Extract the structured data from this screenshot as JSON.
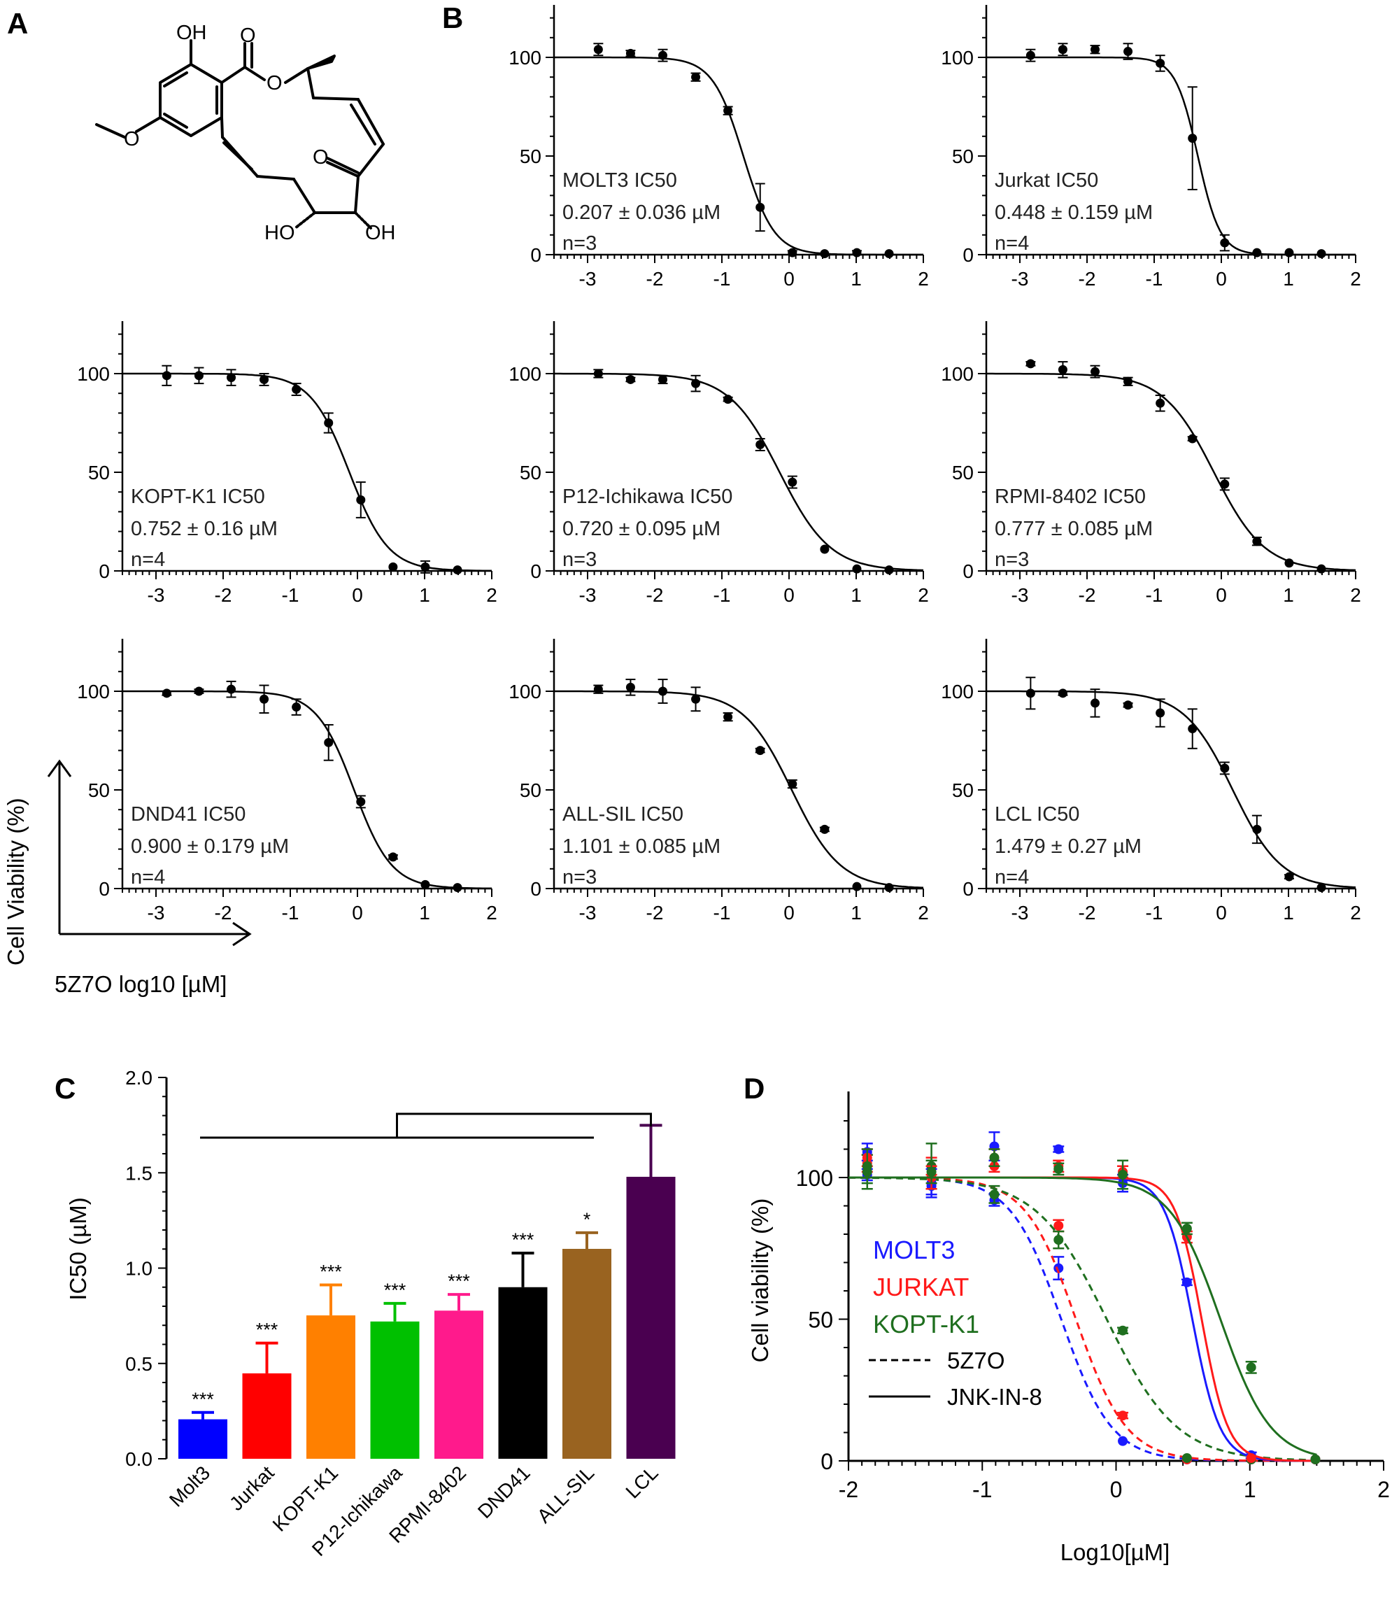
{
  "panel_labels": {
    "a": "A",
    "b": "B",
    "c": "C",
    "d": "D"
  },
  "colors": {
    "MOLT3": "#1a1aff",
    "JURKAT": "#ff1a1a",
    "KOPT-K1": "#1f6f1f",
    "ink": "#000000"
  },
  "structure": {
    "name": "5Z7O",
    "labels": {
      "oh_top": "OH",
      "o_carbonyl": "O",
      "o_ester": "O",
      "o_methoxy": "O",
      "o_ketone": "O",
      "ho": "HO",
      "oh_bottom": "OH"
    }
  },
  "panel_b_axes": {
    "xlabel": "5Z7O log10 [µM]",
    "ylabel": "Cell Viability (%)"
  },
  "chart_data": [
    {
      "type": "line",
      "panel": "B",
      "layout": "3x3 grid of dose-response curves (first cell is the structure of panel A)",
      "x_ticks": [
        -3,
        -2,
        -1,
        0,
        1,
        2
      ],
      "y_ticks": [
        0,
        50,
        100
      ],
      "xlim": [
        -3.5,
        2
      ],
      "ylim": [
        0,
        125
      ],
      "xlabel": "5Z7O log10 [µM]",
      "ylabel": "Cell Viability (%)",
      "x": [
        -2.84,
        -2.36,
        -1.88,
        -1.39,
        -0.91,
        -0.43,
        0.05,
        0.53,
        1.01,
        1.49
      ],
      "series": [
        {
          "name": "MOLT3",
          "ic50_label": "MOLT3 IC50",
          "value_label": "0.207 ± 0.036 µM",
          "n_label": "n=3",
          "ic50_log": -0.68,
          "hill": 1.9,
          "y": [
            104,
            102,
            101,
            90,
            73,
            24,
            1,
            0.5,
            1,
            0.5
          ],
          "err": [
            3,
            1.5,
            3,
            2,
            2,
            12,
            1,
            0.5,
            1,
            0.5
          ]
        },
        {
          "name": "Jurkat",
          "ic50_label": "Jurkat IC50",
          "value_label": "0.448 ± 0.159 µM",
          "n_label": "n=4",
          "ic50_log": -0.35,
          "hill": 2.6,
          "y": [
            101,
            104,
            104,
            103,
            97,
            59,
            6,
            1,
            1,
            0.5
          ],
          "err": [
            3,
            3,
            2,
            4,
            4,
            26,
            4,
            0.5,
            0.5,
            0.5
          ]
        },
        {
          "name": "KOPT-K1",
          "ic50_label": "KOPT-K1 IC50",
          "value_label": "0.752 ± 0.16 µM",
          "n_label": "n=4",
          "ic50_log": -0.12,
          "hill": 1.5,
          "y": [
            99,
            99,
            98,
            97,
            92,
            75,
            36,
            2,
            2,
            0.5
          ],
          "err": [
            5,
            4,
            4,
            3,
            3,
            5,
            9,
            0.5,
            3,
            0.5
          ]
        },
        {
          "name": "P12-Ichikawa",
          "ic50_label": "P12-Ichikawa IC50",
          "value_label": "0.720 ± 0.095 µM",
          "n_label": "n=3",
          "ic50_log": -0.14,
          "hill": 1.15,
          "y": [
            100,
            97,
            97,
            95,
            87,
            64,
            45,
            11,
            1,
            0.5
          ],
          "err": [
            2,
            1,
            2,
            4,
            1,
            3,
            3,
            0.5,
            0.5,
            0.5
          ]
        },
        {
          "name": "RPMI-8402",
          "ic50_label": "RPMI-8402 IC50",
          "value_label": "0.777 ± 0.085 µM",
          "n_label": "n=3",
          "ic50_log": -0.11,
          "hill": 1.15,
          "y": [
            105,
            102,
            101,
            96,
            85,
            67,
            44,
            15,
            4,
            1
          ],
          "err": [
            1,
            4,
            3,
            2,
            4,
            1,
            3,
            2,
            0.5,
            0.5
          ]
        },
        {
          "name": "DND41",
          "ic50_label": "DND41 IC50",
          "value_label": "0.900 ± 0.179 µM",
          "n_label": "n=4",
          "ic50_log": -0.05,
          "hill": 1.55,
          "y": [
            99,
            100,
            101,
            96,
            92,
            74,
            44,
            16,
            2,
            0.5
          ],
          "err": [
            1,
            1,
            4,
            7,
            4,
            9,
            3,
            1,
            0.5,
            0.5
          ]
        },
        {
          "name": "ALL-SIL",
          "ic50_label": "ALL-SIL IC50",
          "value_label": "1.101 ± 0.085 µM",
          "n_label": "n=3",
          "ic50_log": 0.04,
          "hill": 1.2,
          "y": [
            101,
            102,
            100,
            96,
            87,
            70,
            53,
            30,
            1,
            0.5
          ],
          "err": [
            2,
            4,
            6,
            6,
            2,
            1,
            2,
            1,
            0.5,
            0.5
          ]
        },
        {
          "name": "LCL",
          "ic50_label": "LCL IC50",
          "value_label": "1.479 ± 0.27 µM",
          "n_label": "n=4",
          "ic50_log": 0.17,
          "hill": 1.2,
          "y": [
            99,
            99,
            94,
            93,
            89,
            81,
            61,
            30,
            6,
            0.5
          ],
          "err": [
            8,
            1,
            7,
            1,
            7,
            10,
            3,
            7,
            1,
            0.5
          ]
        }
      ]
    },
    {
      "type": "bar",
      "panel": "C",
      "ylabel": "IC50 (µM)",
      "xlabel": "",
      "ylim": [
        0,
        2.0
      ],
      "y_ticks": [
        "0.0",
        "0.5",
        "1.0",
        "1.5",
        "2.0"
      ],
      "categories": [
        "Molt3",
        "Jurkat",
        "KOPT-K1",
        "P12-Ichikawa",
        "RPMI-8402",
        "DND41",
        "ALL-SIL",
        "LCL"
      ],
      "values": [
        0.207,
        0.448,
        0.752,
        0.72,
        0.777,
        0.9,
        1.101,
        1.479
      ],
      "errors": [
        0.036,
        0.159,
        0.16,
        0.095,
        0.085,
        0.179,
        0.085,
        0.27
      ],
      "colors": [
        "#0000ff",
        "#ff0000",
        "#ff8000",
        "#00c000",
        "#ff1a8c",
        "#000000",
        "#996320",
        "#4a0050"
      ],
      "significance": [
        "***",
        "***",
        "***",
        "***",
        "***",
        "***",
        "*",
        ""
      ],
      "comparison_bracket": {
        "from_category": "Molt3",
        "to_category": "ALL-SIL",
        "vs": "LCL"
      }
    },
    {
      "type": "line",
      "panel": "D",
      "xlabel": "Log10[µM]",
      "ylabel": "Cell viability (%)",
      "xlim": [
        -2,
        2
      ],
      "ylim": [
        0,
        125
      ],
      "x_ticks": [
        -2,
        -1,
        0,
        1,
        2
      ],
      "y_ticks": [
        0,
        50,
        100
      ],
      "legend": {
        "placement": "center-left",
        "cells": [
          "MOLT3",
          "JURKAT",
          "KOPT-K1"
        ],
        "styles": [
          "5Z7O",
          "JNK-IN-8"
        ]
      },
      "x": [
        -1.86,
        -1.38,
        -0.91,
        -0.43,
        0.05,
        0.53,
        1.01,
        1.49
      ],
      "series": [
        {
          "name": "MOLT3",
          "drug": "5Z7O",
          "style": "dashed",
          "ic50_log": -0.41,
          "hill": 2.3,
          "y": [
            101,
            97,
            92,
            68,
            7,
            0.5,
            0.5,
            0.5
          ],
          "err": [
            2,
            3,
            2,
            4,
            0.5,
            0.5,
            0.5,
            0.5
          ]
        },
        {
          "name": "JURKAT",
          "drug": "5Z7O",
          "style": "dashed",
          "ic50_log": -0.3,
          "hill": 2.3,
          "y": [
            105,
            104,
            104,
            83,
            16,
            0.5,
            0.5,
            0.5
          ],
          "err": [
            3,
            3,
            2,
            2,
            1,
            0.5,
            0.5,
            0.5
          ]
        },
        {
          "name": "KOPT-K1",
          "drug": "5Z7O",
          "style": "dashed",
          "ic50_log": -0.07,
          "hill": 1.65,
          "y": [
            102,
            104,
            94,
            78,
            46,
            1,
            0.5,
            0.5
          ],
          "err": [
            6,
            8,
            3,
            3,
            1,
            0.5,
            0.5,
            0.5
          ]
        },
        {
          "name": "MOLT3",
          "drug": "JNK-IN-8",
          "style": "solid",
          "ic50_log": 0.57,
          "hill": 4.2,
          "y": [
            109,
            98,
            111,
            110,
            98,
            63,
            2,
            0.5
          ],
          "err": [
            3,
            5,
            5,
            1,
            3,
            1,
            1,
            0.5
          ]
        },
        {
          "name": "JURKAT",
          "drug": "JNK-IN-8",
          "style": "solid",
          "ic50_log": 0.64,
          "hill": 4.4,
          "y": [
            107,
            100,
            107,
            104,
            102,
            79,
            1,
            0.5
          ],
          "err": [
            3,
            4,
            3,
            2,
            2,
            2,
            0.5,
            0.5
          ]
        },
        {
          "name": "KOPT-K1",
          "drug": "JNK-IN-8",
          "style": "solid",
          "ic50_log": 0.78,
          "hill": 2.3,
          "y": [
            104,
            102,
            107,
            103,
            101,
            82,
            33,
            0.5
          ],
          "err": [
            6,
            4,
            3,
            2,
            5,
            2,
            2,
            0.5
          ]
        }
      ]
    }
  ]
}
